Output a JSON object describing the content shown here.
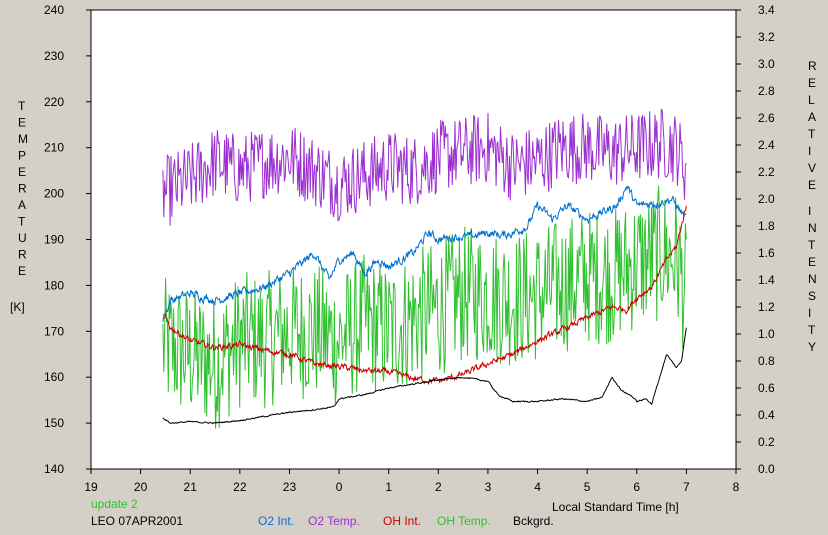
{
  "chart_data": {
    "type": "line",
    "left_axis_title": "TEMPERATURE",
    "left_axis_unit": "[K]",
    "right_axis_title_1": "RELATIVE",
    "right_axis_title_2": "INTENSITY",
    "xlabel": "Local Standard Time [h]",
    "status": "update 2",
    "site_date": "LEO 07APR2001",
    "grid": false,
    "y_left": {
      "min": 140,
      "max": 240,
      "ticks": [
        140,
        150,
        160,
        170,
        180,
        190,
        200,
        210,
        220,
        230,
        240
      ]
    },
    "y_right": {
      "min": 0.0,
      "max": 3.4,
      "ticks": [
        "0.0",
        "0.2",
        "0.4",
        "0.6",
        "0.8",
        "1.0",
        "1.2",
        "1.4",
        "1.6",
        "1.8",
        "2.0",
        "2.2",
        "2.4",
        "2.6",
        "2.8",
        "3.0",
        "3.2",
        "3.4"
      ]
    },
    "x_axis": {
      "min": 19,
      "max": 32,
      "ticks": [
        19,
        20,
        21,
        22,
        23,
        24,
        25,
        26,
        27,
        28,
        29,
        30,
        31,
        32
      ],
      "tick_labels": [
        "19",
        "20",
        "21",
        "22",
        "23",
        "0",
        "1",
        "2",
        "3",
        "4",
        "5",
        "6",
        "7",
        "8"
      ]
    },
    "series": [
      {
        "name": "O2 Int.",
        "color": "#0070d0",
        "axis": "right",
        "noise": 0.025,
        "x": [
          20.45,
          20.6,
          21.0,
          21.5,
          22.0,
          22.5,
          23.0,
          23.5,
          23.8,
          24.0,
          24.3,
          24.5,
          24.8,
          25.0,
          25.5,
          25.8,
          26.0,
          26.3,
          26.6,
          27.0,
          27.3,
          27.5,
          27.8,
          28.0,
          28.3,
          28.6,
          29.0,
          29.3,
          29.6,
          29.8,
          30.0,
          30.4,
          30.7,
          31.0
        ],
        "y": [
          1.1,
          1.25,
          1.3,
          1.25,
          1.3,
          1.35,
          1.45,
          1.6,
          1.4,
          1.55,
          1.6,
          1.45,
          1.55,
          1.5,
          1.6,
          1.75,
          1.7,
          1.72,
          1.72,
          1.75,
          1.73,
          1.75,
          1.8,
          1.95,
          1.85,
          1.95,
          1.85,
          1.9,
          1.95,
          2.1,
          1.95,
          1.97,
          2.0,
          1.85
        ]
      },
      {
        "name": "O2 Temp.",
        "color": "#9b30d0",
        "axis": "left",
        "noise": 8,
        "x": [
          20.45,
          21.0,
          21.5,
          22.0,
          22.5,
          23.0,
          23.5,
          24.0,
          24.5,
          25.0,
          25.5,
          26.0,
          26.5,
          27.0,
          27.5,
          28.0,
          28.5,
          29.0,
          29.5,
          30.0,
          30.5,
          30.8,
          31.0
        ],
        "y": [
          200,
          203,
          207,
          205,
          207,
          208,
          205,
          202,
          204,
          206,
          205,
          208,
          209,
          210,
          206,
          207,
          210,
          210,
          209,
          210,
          211,
          210,
          205
        ]
      },
      {
        "name": "OH Int.",
        "color": "#cc0000",
        "axis": "right",
        "noise": 0.018,
        "x": [
          20.45,
          20.6,
          21.0,
          21.5,
          22.0,
          22.5,
          23.0,
          23.5,
          24.0,
          24.5,
          25.0,
          25.5,
          26.0,
          26.5,
          27.0,
          27.5,
          28.0,
          28.5,
          29.0,
          29.5,
          29.8,
          30.0,
          30.3,
          30.6,
          30.8,
          31.0
        ],
        "y": [
          1.15,
          1.05,
          0.95,
          0.9,
          0.92,
          0.88,
          0.85,
          0.78,
          0.76,
          0.73,
          0.72,
          0.67,
          0.65,
          0.7,
          0.78,
          0.85,
          0.95,
          1.03,
          1.12,
          1.2,
          1.18,
          1.27,
          1.35,
          1.55,
          1.65,
          1.95
        ]
      },
      {
        "name": "OH Temp.",
        "color": "#30c030",
        "axis": "left",
        "noise": 15,
        "x": [
          20.45,
          21.0,
          21.5,
          22.0,
          22.5,
          23.0,
          23.5,
          24.0,
          24.5,
          25.0,
          25.5,
          26.0,
          26.5,
          27.0,
          27.5,
          28.0,
          28.5,
          29.0,
          29.5,
          30.0,
          30.5,
          30.8,
          31.0
        ],
        "y": [
          167,
          165,
          163,
          168,
          168,
          170,
          170,
          168,
          172,
          170,
          173,
          175,
          178,
          178,
          177,
          178,
          180,
          182,
          182,
          185,
          187,
          186,
          178
        ]
      },
      {
        "name": "Bckgrd.",
        "color": "#000000",
        "axis": "right",
        "noise": 0.004,
        "x": [
          20.45,
          20.6,
          21.0,
          21.5,
          22.0,
          22.5,
          23.0,
          23.5,
          23.9,
          24.0,
          24.5,
          25.0,
          25.5,
          26.0,
          26.5,
          27.0,
          27.2,
          27.5,
          28.0,
          28.5,
          29.0,
          29.3,
          29.5,
          29.7,
          29.9,
          30.0,
          30.2,
          30.3,
          30.6,
          30.8,
          30.9,
          31.0
        ],
        "y": [
          0.38,
          0.34,
          0.35,
          0.34,
          0.36,
          0.39,
          0.42,
          0.44,
          0.46,
          0.52,
          0.55,
          0.6,
          0.63,
          0.66,
          0.68,
          0.65,
          0.55,
          0.5,
          0.5,
          0.52,
          0.5,
          0.53,
          0.68,
          0.58,
          0.54,
          0.5,
          0.52,
          0.48,
          0.85,
          0.75,
          0.8,
          1.05
        ]
      }
    ]
  }
}
